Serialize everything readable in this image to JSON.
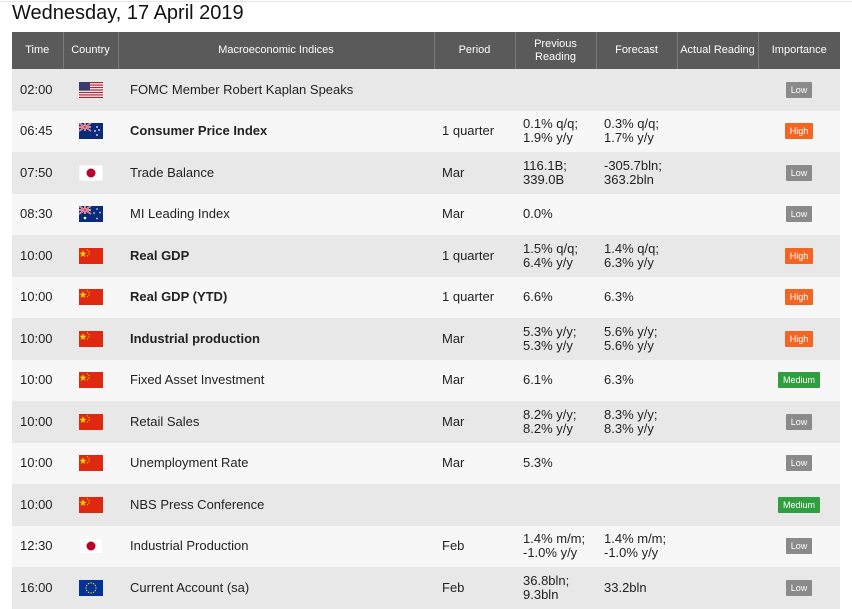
{
  "page": {
    "title": "Wednesday, 17 April 2019"
  },
  "columns": {
    "time": "Time",
    "country": "Country",
    "indices": "Macroeconomic Indices",
    "period": "Period",
    "previous": "Previous Reading",
    "forecast": "Forecast",
    "actual": "Actual Reading",
    "importance": "Importance"
  },
  "rows": [
    {
      "time": "02:00",
      "flag": "us-flag-icon",
      "indicator": "FOMC Member Robert Kaplan Speaks",
      "period": "",
      "previous": "",
      "forecast": "",
      "actual": "",
      "importance": "Low"
    },
    {
      "time": "06:45",
      "flag": "nz-flag-icon",
      "indicator": "Consumer Price Index",
      "period": "1 quarter",
      "previous": "0.1% q/q; 1.9% y/y",
      "forecast": "0.3% q/q; 1.7% y/y",
      "actual": "",
      "importance": "High"
    },
    {
      "time": "07:50",
      "flag": "jp-flag-icon",
      "indicator": "Trade Balance",
      "period": "Mar",
      "previous": "116.1B; 339.0B",
      "forecast": "-305.7bln; 363.2bln",
      "actual": "",
      "importance": "Low"
    },
    {
      "time": "08:30",
      "flag": "au-flag-icon",
      "indicator": "MI Leading Index",
      "period": "Mar",
      "previous": "0.0%",
      "forecast": "",
      "actual": "",
      "importance": "Low"
    },
    {
      "time": "10:00",
      "flag": "cn-flag-icon",
      "indicator": "Real GDP",
      "period": "1 quarter",
      "previous": "1.5% q/q; 6.4% y/y",
      "forecast": "1.4% q/q; 6.3% y/y",
      "actual": "",
      "importance": "High"
    },
    {
      "time": "10:00",
      "flag": "cn-flag-icon",
      "indicator": "Real GDP (YTD)",
      "period": "1 quarter",
      "previous": "6.6%",
      "forecast": "6.3%",
      "actual": "",
      "importance": "High"
    },
    {
      "time": "10:00",
      "flag": "cn-flag-icon",
      "indicator": "Industrial production",
      "period": "Mar",
      "previous": "5.3% y/y; 5.3% y/y",
      "forecast": "5.6% y/y; 5.6% y/y",
      "actual": "",
      "importance": "High"
    },
    {
      "time": "10:00",
      "flag": "cn-flag-icon",
      "indicator": "Fixed Asset Investment",
      "period": "Mar",
      "previous": "6.1%",
      "forecast": "6.3%",
      "actual": "",
      "importance": "Medium"
    },
    {
      "time": "10:00",
      "flag": "cn-flag-icon",
      "indicator": "Retail Sales",
      "period": "Mar",
      "previous": "8.2% y/y; 8.2% y/y",
      "forecast": "8.3% y/y; 8.3% y/y",
      "actual": "",
      "importance": "Low"
    },
    {
      "time": "10:00",
      "flag": "cn-flag-icon",
      "indicator": "Unemployment Rate",
      "period": "Mar",
      "previous": "5.3%",
      "forecast": "",
      "actual": "",
      "importance": "Low"
    },
    {
      "time": "10:00",
      "flag": "cn-flag-icon",
      "indicator": "NBS Press Conference",
      "period": "",
      "previous": "",
      "forecast": "",
      "actual": "",
      "importance": "Medium"
    },
    {
      "time": "12:30",
      "flag": "jp-flag-icon",
      "indicator": "Industrial Production",
      "period": "Feb",
      "previous": "1.4% m/m; -1.0% y/y",
      "forecast": "1.4% m/m; -1.0% y/y",
      "actual": "",
      "importance": "Low"
    },
    {
      "time": "16:00",
      "flag": "eu-flag-icon",
      "indicator": "Current Account (sa)",
      "period": "Feb",
      "previous": "36.8bln; 9.3bln",
      "forecast": "33.2bln",
      "actual": "",
      "importance": "Low"
    }
  ],
  "bold_rows": [
    1,
    4,
    5,
    6
  ],
  "importance_colors": {
    "Low": "#8a8a8a",
    "High": "#f26522",
    "Medium": "#2e9e3e"
  }
}
